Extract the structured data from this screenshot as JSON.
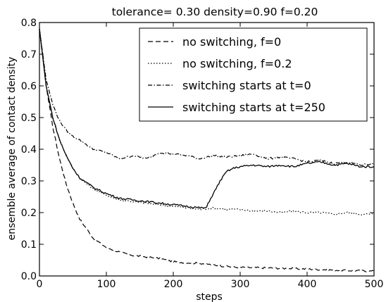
{
  "chart_data": {
    "type": "line",
    "title": "tolerance= 0.30  density=0.90  f=0.20",
    "xlabel": "steps",
    "ylabel": "ensemble average of contact density",
    "xlim": [
      0,
      500
    ],
    "ylim": [
      0.0,
      0.8
    ],
    "xticks": [
      "0",
      "100",
      "200",
      "300",
      "400",
      "500"
    ],
    "yticks": [
      "0.0",
      "0.1",
      "0.2",
      "0.3",
      "0.4",
      "0.5",
      "0.6",
      "0.7",
      "0.8"
    ],
    "grid": false,
    "legend_position": "top-right",
    "series": [
      {
        "name": "no switching, f=0",
        "style": "dashed",
        "color": "#000000",
        "x": [
          0,
          10,
          20,
          30,
          40,
          50,
          60,
          80,
          100,
          120,
          140,
          160,
          180,
          200,
          220,
          240,
          260,
          280,
          300,
          350,
          400,
          450,
          500
        ],
        "y": [
          0.78,
          0.6,
          0.47,
          0.37,
          0.29,
          0.23,
          0.18,
          0.12,
          0.09,
          0.075,
          0.065,
          0.06,
          0.055,
          0.045,
          0.042,
          0.04,
          0.035,
          0.03,
          0.027,
          0.025,
          0.022,
          0.018,
          0.015
        ]
      },
      {
        "name": "no switching,  f=0.2",
        "style": "dotted",
        "color": "#000000",
        "x": [
          0,
          10,
          20,
          30,
          40,
          50,
          60,
          80,
          100,
          120,
          140,
          160,
          180,
          200,
          220,
          240,
          260,
          280,
          300,
          320,
          340,
          360,
          380,
          400,
          420,
          440,
          460,
          480,
          500
        ],
        "y": [
          0.78,
          0.6,
          0.5,
          0.43,
          0.38,
          0.34,
          0.31,
          0.275,
          0.255,
          0.24,
          0.235,
          0.23,
          0.225,
          0.22,
          0.215,
          0.21,
          0.215,
          0.21,
          0.21,
          0.205,
          0.205,
          0.2,
          0.205,
          0.2,
          0.2,
          0.195,
          0.2,
          0.195,
          0.195
        ]
      },
      {
        "name": "switching starts at t=0",
        "style": "dashdot",
        "color": "#000000",
        "x": [
          0,
          10,
          20,
          30,
          40,
          50,
          60,
          80,
          100,
          120,
          140,
          160,
          180,
          200,
          220,
          240,
          260,
          280,
          300,
          320,
          340,
          360,
          380,
          400,
          420,
          440,
          460,
          480,
          500
        ],
        "y": [
          0.78,
          0.62,
          0.54,
          0.49,
          0.46,
          0.44,
          0.43,
          0.4,
          0.39,
          0.37,
          0.38,
          0.37,
          0.39,
          0.385,
          0.38,
          0.37,
          0.38,
          0.375,
          0.38,
          0.385,
          0.37,
          0.375,
          0.37,
          0.36,
          0.365,
          0.355,
          0.36,
          0.35,
          0.355
        ]
      },
      {
        "name": "switching starts at t=250",
        "style": "solid",
        "color": "#000000",
        "x": [
          0,
          10,
          20,
          30,
          40,
          50,
          60,
          80,
          100,
          120,
          140,
          160,
          180,
          200,
          220,
          240,
          250,
          252,
          260,
          270,
          280,
          290,
          300,
          320,
          340,
          360,
          380,
          400,
          420,
          440,
          460,
          480,
          500
        ],
        "y": [
          0.78,
          0.6,
          0.5,
          0.43,
          0.38,
          0.34,
          0.31,
          0.28,
          0.26,
          0.245,
          0.24,
          0.235,
          0.23,
          0.225,
          0.22,
          0.215,
          0.215,
          0.23,
          0.26,
          0.3,
          0.33,
          0.34,
          0.345,
          0.35,
          0.345,
          0.35,
          0.345,
          0.355,
          0.36,
          0.35,
          0.355,
          0.345,
          0.345
        ]
      }
    ]
  }
}
